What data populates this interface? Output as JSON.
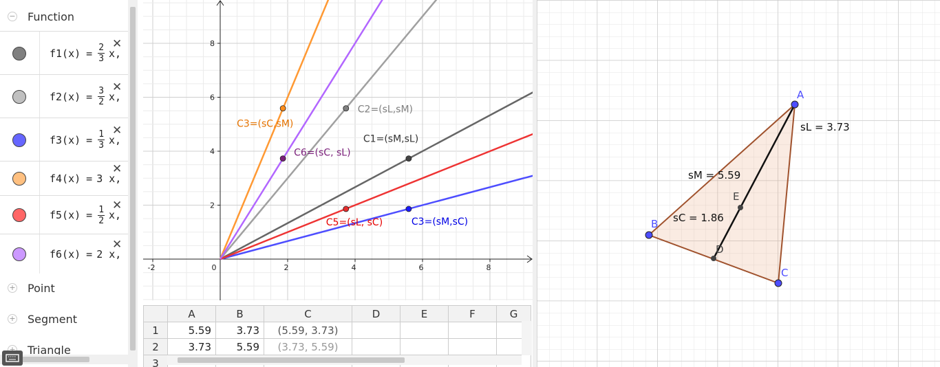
{
  "algebra": {
    "groups": [
      {
        "title": "Function",
        "toggle": "−"
      },
      {
        "title": "Point",
        "toggle": "+"
      },
      {
        "title": "Segment",
        "toggle": "+"
      },
      {
        "title": "Triangle",
        "toggle": "+"
      }
    ],
    "items": [
      {
        "lhs": "f1(x)",
        "eq": "=",
        "num": "2",
        "den": "3",
        "rhs": "x,",
        "color": "#808080",
        "close": "✕"
      },
      {
        "lhs": "f2(x)",
        "eq": "=",
        "num": "3",
        "den": "2",
        "rhs": "x,",
        "color": "#c0c0c0",
        "close": "✕"
      },
      {
        "lhs": "f3(x)",
        "eq": "=",
        "num": "1",
        "den": "3",
        "rhs": "x,",
        "color": "#6666ff",
        "close": "✕"
      },
      {
        "lhs": "f4(x)",
        "eq": "=",
        "rhs": "3 x,",
        "color": "#ffc080",
        "close": "✕"
      },
      {
        "lhs": "f5(x)",
        "eq": "=",
        "num": "1",
        "den": "2",
        "rhs": "x,",
        "color": "#ff6666",
        "close": "✕"
      },
      {
        "lhs": "f6(x)",
        "eq": "=",
        "rhs": "2 x,",
        "color": "#cc99ff",
        "close": "✕"
      }
    ]
  },
  "graphics": {
    "xticks": [
      -2,
      0,
      2,
      4,
      6,
      8
    ],
    "yticks": [
      2,
      4,
      6,
      8
    ],
    "lines": [
      {
        "slope": 0.6667,
        "color": "#666666"
      },
      {
        "slope": 1.5,
        "color": "#a0a0a0"
      },
      {
        "slope": 0.3333,
        "color": "#4d4dff"
      },
      {
        "slope": 3,
        "color": "#ff9933"
      },
      {
        "slope": 0.5,
        "color": "#ee3333"
      },
      {
        "slope": 2,
        "color": "#b266ff"
      }
    ],
    "points": [
      {
        "label": "C1=(sM,sL)",
        "x": 5.59,
        "y": 3.73,
        "color": "#444444",
        "text_color": "#333333"
      },
      {
        "label": "C2=(sL,sM)",
        "x": 3.73,
        "y": 5.59,
        "color": "#808080",
        "text_color": "#808080"
      },
      {
        "label": "C3=(sC,sM)",
        "x": 1.86,
        "y": 5.59,
        "color": "#ff8c1a",
        "text_color": "#e67300"
      },
      {
        "label": "C6=(sC, sL)",
        "x": 1.86,
        "y": 3.73,
        "color": "#7a1f7a",
        "text_color": "#7a1f7a"
      },
      {
        "label": "C5=(sL, sC)",
        "x": 3.73,
        "y": 1.86,
        "color": "#e62e2e",
        "text_color": "#e60000"
      },
      {
        "label": "C3=(sM,sC)",
        "x": 5.59,
        "y": 1.86,
        "color": "#1a1aff",
        "text_color": "#0000e6"
      }
    ]
  },
  "spreadsheet": {
    "columns": [
      "A",
      "B",
      "C",
      "D",
      "E",
      "F",
      "G"
    ],
    "rows": [
      {
        "header": "1",
        "cells": [
          "5.59",
          "3.73",
          "(5.59, 3.73)"
        ]
      },
      {
        "header": "2",
        "cells": [
          "3.73",
          "5.59",
          "(3.73, 5.59)"
        ]
      },
      {
        "header": "3",
        "cells": []
      }
    ]
  },
  "graphics2": {
    "vertices": [
      "A",
      "B",
      "C"
    ],
    "points": [
      "D",
      "E"
    ],
    "measures": [
      "sL = 3.73",
      "sM = 5.59",
      "sC = 1.86"
    ]
  }
}
